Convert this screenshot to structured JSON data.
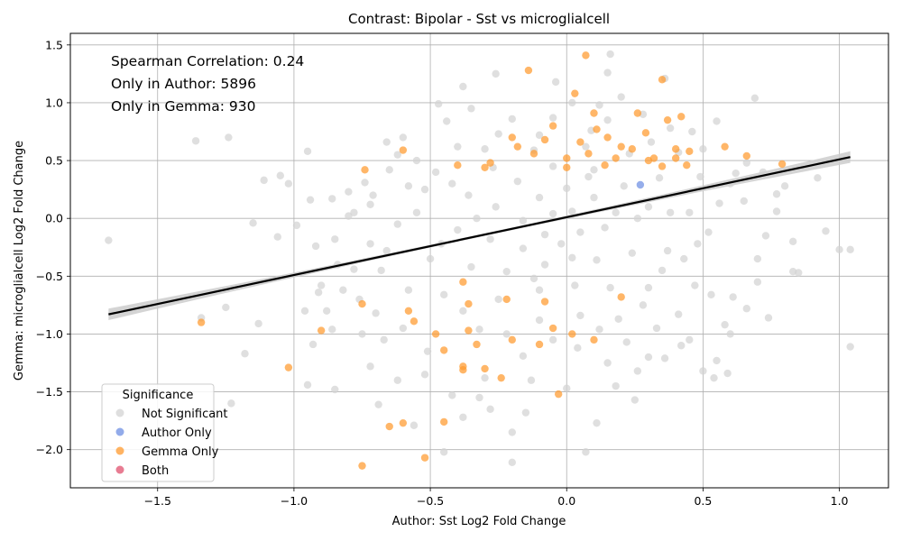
{
  "chart_data": {
    "type": "scatter",
    "title": "Contrast: Bipolar - Sst vs microglialcell",
    "xlabel": "Author: Sst Log2 Fold Change",
    "ylabel": "Gemma: microglialcell Log2 Fold Change",
    "xlim": [
      -1.82,
      1.18
    ],
    "ylim": [
      -2.33,
      1.6
    ],
    "xticks": [
      -1.5,
      -1.0,
      -0.5,
      0.0,
      0.5,
      1.0
    ],
    "yticks": [
      -2.0,
      -1.5,
      -1.0,
      -0.5,
      0.0,
      0.5,
      1.0,
      1.5
    ],
    "grid": true,
    "annotations": [
      "Spearman Correlation: 0.24",
      "Only in Author: 5896",
      "Only in Gemma: 930"
    ],
    "legend": {
      "title": "Significance",
      "placement": "lower-left",
      "entries": [
        {
          "label": "Not Significant",
          "color": "#d3d3d3"
        },
        {
          "label": "Author Only",
          "color": "#6d8fe3"
        },
        {
          "label": "Gemma Only",
          "color": "#ff9a2e"
        },
        {
          "label": "Both",
          "color": "#e0506e"
        }
      ]
    },
    "regression": {
      "x": [
        -1.68,
        1.04
      ],
      "y": [
        -0.83,
        0.53
      ],
      "ci_half_width_ends": 0.05,
      "line_color": "#000000",
      "band_color": "#cccccc"
    },
    "series": [
      {
        "name": "Not Significant",
        "color": "#d3d3d3",
        "points": [
          [
            -1.68,
            -0.19
          ],
          [
            -1.36,
            0.67
          ],
          [
            -1.24,
            0.7
          ],
          [
            -1.11,
            0.33
          ],
          [
            -1.05,
            0.37
          ],
          [
            -1.02,
            0.3
          ],
          [
            -0.95,
            0.58
          ],
          [
            -0.94,
            0.16
          ],
          [
            -1.15,
            -0.04
          ],
          [
            -1.06,
            -0.16
          ],
          [
            -0.99,
            -0.06
          ],
          [
            -0.92,
            -0.24
          ],
          [
            -0.86,
            0.17
          ],
          [
            -0.8,
            0.23
          ],
          [
            -0.78,
            0.05
          ],
          [
            -0.84,
            -0.4
          ],
          [
            -0.82,
            -0.62
          ],
          [
            -0.88,
            -0.8
          ],
          [
            -0.93,
            -1.09
          ],
          [
            -0.95,
            -1.44
          ],
          [
            -0.85,
            -1.48
          ],
          [
            -1.13,
            -0.91
          ],
          [
            -1.18,
            -1.17
          ],
          [
            -1.23,
            -1.6
          ],
          [
            -1.34,
            -0.86
          ],
          [
            -1.25,
            -0.77
          ],
          [
            -0.72,
            -1.28
          ],
          [
            -0.69,
            -1.61
          ],
          [
            -0.62,
            -1.4
          ],
          [
            -0.56,
            -1.79
          ],
          [
            -0.45,
            -2.02
          ],
          [
            -0.2,
            -2.11
          ],
          [
            -0.2,
            -1.85
          ],
          [
            0.07,
            -2.02
          ],
          [
            0.11,
            -1.77
          ],
          [
            0.25,
            -1.57
          ],
          [
            0.3,
            -1.2
          ],
          [
            0.36,
            -1.21
          ],
          [
            0.55,
            -1.23
          ],
          [
            0.54,
            -1.38
          ],
          [
            0.59,
            -1.34
          ],
          [
            0.5,
            -1.32
          ],
          [
            0.61,
            -0.68
          ],
          [
            0.7,
            -0.35
          ],
          [
            0.73,
            -0.15
          ],
          [
            0.77,
            0.06
          ],
          [
            0.77,
            0.21
          ],
          [
            0.83,
            -0.46
          ],
          [
            0.85,
            -0.47
          ],
          [
            0.92,
            0.35
          ],
          [
            0.95,
            -0.11
          ],
          [
            1.0,
            -0.27
          ],
          [
            1.04,
            -0.27
          ],
          [
            1.04,
            -1.11
          ],
          [
            0.69,
            1.04
          ],
          [
            0.55,
            0.84
          ],
          [
            0.36,
            1.21
          ],
          [
            0.16,
            1.42
          ],
          [
            0.15,
            1.26
          ],
          [
            0.2,
            1.05
          ],
          [
            -0.04,
            1.18
          ],
          [
            -0.26,
            1.25
          ],
          [
            -0.38,
            1.14
          ],
          [
            -0.47,
            0.99
          ],
          [
            -0.66,
            0.66
          ],
          [
            -0.6,
            0.7
          ],
          [
            -0.71,
            0.2
          ],
          [
            -0.74,
            0.31
          ],
          [
            -0.65,
            0.42
          ],
          [
            -0.55,
            0.5
          ],
          [
            -0.52,
            0.25
          ],
          [
            -0.62,
            -0.05
          ],
          [
            -0.72,
            -0.22
          ],
          [
            -0.68,
            -0.45
          ],
          [
            -0.76,
            -0.7
          ],
          [
            -0.6,
            -0.95
          ],
          [
            -0.51,
            -1.15
          ],
          [
            -0.42,
            -1.53
          ],
          [
            -0.38,
            -1.72
          ],
          [
            -0.28,
            -1.65
          ],
          [
            -0.13,
            -1.4
          ],
          [
            0.0,
            -1.47
          ],
          [
            0.15,
            -1.25
          ],
          [
            0.22,
            -1.07
          ],
          [
            0.33,
            -0.95
          ],
          [
            0.41,
            -0.83
          ],
          [
            0.47,
            -0.58
          ],
          [
            0.43,
            -0.35
          ],
          [
            0.52,
            -0.12
          ],
          [
            0.56,
            0.13
          ],
          [
            0.49,
            0.36
          ],
          [
            0.41,
            0.57
          ],
          [
            0.31,
            0.66
          ],
          [
            0.15,
            0.85
          ],
          [
            -0.05,
            0.87
          ],
          [
            -0.25,
            0.73
          ],
          [
            -0.4,
            0.62
          ],
          [
            -0.48,
            0.4
          ],
          [
            -0.55,
            0.05
          ],
          [
            -0.5,
            -0.35
          ],
          [
            -0.45,
            -0.66
          ],
          [
            -0.32,
            -0.96
          ],
          [
            -0.16,
            -1.19
          ],
          [
            0.04,
            -1.12
          ],
          [
            0.19,
            -0.87
          ],
          [
            0.3,
            -0.6
          ],
          [
            0.37,
            -0.28
          ],
          [
            0.38,
            0.05
          ],
          [
            0.34,
            0.35
          ],
          [
            0.23,
            0.56
          ],
          [
            0.07,
            0.62
          ],
          [
            -0.12,
            0.59
          ],
          [
            -0.27,
            0.44
          ],
          [
            -0.36,
            0.2
          ],
          [
            -0.4,
            -0.1
          ],
          [
            -0.35,
            -0.42
          ],
          [
            -0.25,
            -0.7
          ],
          [
            -0.1,
            -0.88
          ],
          [
            0.05,
            -0.84
          ],
          [
            0.16,
            -0.6
          ],
          [
            0.24,
            -0.3
          ],
          [
            0.26,
            0.0
          ],
          [
            0.21,
            0.28
          ],
          [
            0.1,
            0.42
          ],
          [
            -0.05,
            0.45
          ],
          [
            -0.18,
            0.32
          ],
          [
            -0.26,
            0.1
          ],
          [
            -0.28,
            -0.18
          ],
          [
            -0.22,
            -0.46
          ],
          [
            -0.1,
            -0.62
          ],
          [
            0.03,
            -0.58
          ],
          [
            0.11,
            -0.36
          ],
          [
            0.14,
            -0.08
          ],
          [
            0.1,
            0.18
          ],
          [
            0.0,
            0.26
          ],
          [
            -0.1,
            0.18
          ],
          [
            -0.16,
            -0.02
          ],
          [
            -0.16,
            -0.26
          ],
          [
            -0.08,
            -0.4
          ],
          [
            0.02,
            -0.34
          ],
          [
            0.05,
            -0.12
          ],
          [
            0.02,
            0.06
          ],
          [
            -0.05,
            0.04
          ],
          [
            -0.08,
            -0.14
          ],
          [
            -0.02,
            -0.22
          ],
          [
            0.65,
            0.15
          ],
          [
            0.62,
            0.39
          ],
          [
            0.58,
            -0.92
          ],
          [
            0.45,
            -1.05
          ],
          [
            -0.3,
            -1.38
          ],
          [
            -0.58,
            -0.62
          ],
          [
            -0.66,
            -0.28
          ],
          [
            -0.44,
            0.84
          ],
          [
            0.02,
            1.0
          ],
          [
            0.28,
            0.9
          ],
          [
            0.5,
            0.6
          ],
          [
            0.66,
            0.48
          ],
          [
            0.7,
            -0.55
          ],
          [
            -0.78,
            -0.44
          ],
          [
            -0.8,
            0.02
          ],
          [
            -0.9,
            -0.58
          ],
          [
            -0.75,
            -1.0
          ],
          [
            -0.7,
            -0.82
          ],
          [
            -0.35,
            0.95
          ],
          [
            0.12,
            0.98
          ],
          [
            0.46,
            0.75
          ],
          [
            0.6,
            0.3
          ],
          [
            0.72,
            0.4
          ],
          [
            -0.62,
            0.55
          ],
          [
            -0.85,
            -0.18
          ],
          [
            -0.32,
            -1.55
          ],
          [
            0.18,
            -1.45
          ],
          [
            0.42,
            -1.1
          ],
          [
            0.6,
            -1.0
          ],
          [
            -0.15,
            -1.68
          ],
          [
            0.26,
            -1.32
          ],
          [
            -0.52,
            -1.35
          ],
          [
            -0.67,
            -1.05
          ],
          [
            -0.86,
            -0.96
          ],
          [
            -0.96,
            -0.8
          ],
          [
            -0.91,
            -0.64
          ],
          [
            -0.72,
            0.12
          ],
          [
            -0.58,
            0.28
          ],
          [
            0.8,
            0.28
          ],
          [
            0.83,
            -0.2
          ],
          [
            0.66,
            -0.78
          ],
          [
            0.74,
            -0.86
          ],
          [
            0.53,
            -0.66
          ],
          [
            -0.2,
            0.86
          ],
          [
            -0.1,
            0.72
          ],
          [
            0.38,
            0.78
          ],
          [
            0.09,
            0.76
          ],
          [
            -0.42,
            0.3
          ],
          [
            -0.3,
            0.6
          ],
          [
            0.3,
            0.1
          ],
          [
            0.45,
            0.05
          ],
          [
            0.48,
            -0.22
          ],
          [
            -0.46,
            -0.22
          ],
          [
            -0.38,
            -0.8
          ],
          [
            0.12,
            -0.96
          ],
          [
            0.28,
            -0.75
          ],
          [
            -0.05,
            -1.05
          ],
          [
            -0.22,
            -1.0
          ],
          [
            0.08,
            0.36
          ],
          [
            -0.33,
            0.0
          ],
          [
            0.35,
            -0.45
          ],
          [
            -0.12,
            -0.52
          ],
          [
            0.18,
            0.05
          ]
        ]
      },
      {
        "name": "Author Only",
        "color": "#6d8fe3",
        "points": [
          [
            0.27,
            0.29
          ]
        ]
      },
      {
        "name": "Gemma Only",
        "color": "#ff9a2e",
        "points": [
          [
            0.07,
            1.41
          ],
          [
            -0.14,
            1.28
          ],
          [
            0.35,
            1.2
          ],
          [
            0.03,
            1.08
          ],
          [
            0.26,
            0.91
          ],
          [
            0.42,
            0.88
          ],
          [
            0.37,
            0.85
          ],
          [
            0.1,
            0.91
          ],
          [
            -0.05,
            0.8
          ],
          [
            0.11,
            0.77
          ],
          [
            0.29,
            0.74
          ],
          [
            0.4,
            0.6
          ],
          [
            0.45,
            0.58
          ],
          [
            0.58,
            0.62
          ],
          [
            0.66,
            0.54
          ],
          [
            0.79,
            0.47
          ],
          [
            -0.6,
            0.59
          ],
          [
            -0.74,
            0.42
          ],
          [
            -0.12,
            0.56
          ],
          [
            -0.2,
            0.7
          ],
          [
            -0.3,
            0.44
          ],
          [
            -0.4,
            0.46
          ],
          [
            0.0,
            0.52
          ],
          [
            0.18,
            0.52
          ],
          [
            0.14,
            0.46
          ],
          [
            0.3,
            0.5
          ],
          [
            0.24,
            0.6
          ],
          [
            0.2,
            0.62
          ],
          [
            0.32,
            0.52
          ],
          [
            0.35,
            0.45
          ],
          [
            0.4,
            0.52
          ],
          [
            0.44,
            0.46
          ],
          [
            -1.34,
            -0.9
          ],
          [
            -1.02,
            -1.29
          ],
          [
            -0.9,
            -0.97
          ],
          [
            -0.75,
            -0.74
          ],
          [
            -0.58,
            -0.8
          ],
          [
            -0.56,
            -0.89
          ],
          [
            -0.48,
            -1.0
          ],
          [
            -0.45,
            -1.14
          ],
          [
            -0.38,
            -1.28
          ],
          [
            -0.38,
            -1.31
          ],
          [
            -0.33,
            -1.09
          ],
          [
            -0.3,
            -1.3
          ],
          [
            -0.36,
            -0.97
          ],
          [
            -0.36,
            -0.74
          ],
          [
            -0.24,
            -1.38
          ],
          [
            -0.2,
            -1.05
          ],
          [
            -0.1,
            -1.09
          ],
          [
            -0.05,
            -0.95
          ],
          [
            -0.03,
            -1.52
          ],
          [
            0.02,
            -1.0
          ],
          [
            0.1,
            -1.05
          ],
          [
            0.2,
            -0.68
          ],
          [
            -0.08,
            -0.72
          ],
          [
            -0.22,
            -0.7
          ],
          [
            -0.6,
            -1.77
          ],
          [
            -0.65,
            -1.8
          ],
          [
            -0.75,
            -2.14
          ],
          [
            -0.52,
            -2.07
          ],
          [
            -0.45,
            -1.76
          ],
          [
            -0.38,
            -0.55
          ],
          [
            -0.28,
            0.48
          ],
          [
            -0.18,
            0.62
          ],
          [
            0.05,
            0.66
          ],
          [
            0.15,
            0.7
          ],
          [
            -0.08,
            0.68
          ],
          [
            0.0,
            0.44
          ],
          [
            0.08,
            0.56
          ]
        ]
      },
      {
        "name": "Both",
        "color": "#e0506e",
        "points": []
      }
    ]
  }
}
